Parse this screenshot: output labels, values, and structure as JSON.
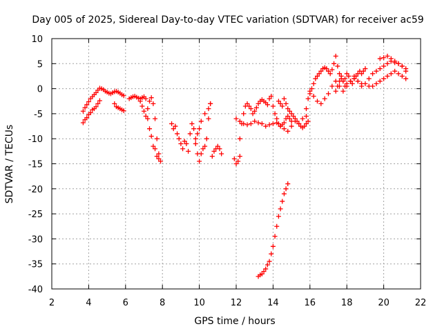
{
  "chart_data": {
    "type": "scatter",
    "title": "Day 005 of 2025, Sidereal Day-to-day VTEC variation (SDTVAR) for receiver ac59",
    "xlabel": "GPS time / hours",
    "ylabel": "SDTVAR / TECUs",
    "xlim": [
      2,
      22
    ],
    "ylim": [
      -40,
      10
    ],
    "xticks": [
      2,
      4,
      6,
      8,
      10,
      12,
      14,
      16,
      18,
      20,
      22
    ],
    "yticks": [
      -40,
      -35,
      -30,
      -25,
      -20,
      -15,
      -10,
      -5,
      0,
      5,
      10
    ],
    "grid": true,
    "marker": "+",
    "series": [
      {
        "name": "SDTVAR",
        "color": "#ff0000",
        "x": [
          3.7,
          3.8,
          3.9,
          4.0,
          4.1,
          4.2,
          4.3,
          4.4,
          4.5,
          4.6,
          4.7,
          4.8,
          4.9,
          5.0,
          5.1,
          5.2,
          5.3,
          5.4,
          5.5,
          5.6,
          5.7,
          5.8,
          5.9,
          3.7,
          3.8,
          3.9,
          4.0,
          4.1,
          4.2,
          4.3,
          4.4,
          4.5,
          4.6,
          5.4,
          5.5,
          5.6,
          5.7,
          5.8,
          5.9,
          6.2,
          6.3,
          6.4,
          6.5,
          6.6,
          6.7,
          6.8,
          6.9,
          7.0,
          7.1,
          6.8,
          6.9,
          7.0,
          7.1,
          7.2,
          7.3,
          7.4,
          7.5,
          7.6,
          7.7,
          7.8,
          7.9,
          7.2,
          7.3,
          7.4,
          7.5,
          7.6,
          7.7,
          7.8,
          8.5,
          8.6,
          8.7,
          8.8,
          8.9,
          9.0,
          9.1,
          9.2,
          9.3,
          9.4,
          9.5,
          9.6,
          9.7,
          9.8,
          9.9,
          10.0,
          10.1,
          10.2,
          10.3,
          10.4,
          10.5,
          10.6,
          10.7,
          10.8,
          10.9,
          11.0,
          11.1,
          11.2,
          9.8,
          9.9,
          10.0,
          10.1,
          10.3,
          10.5,
          10.6,
          11.9,
          12.0,
          12.1,
          12.2,
          12.0,
          12.2,
          12.4,
          12.6,
          12.8,
          13.0,
          13.2,
          13.4,
          13.6,
          13.8,
          14.0,
          14.2,
          14.4,
          14.6,
          14.8,
          15.0,
          15.2,
          15.4,
          15.6,
          15.8,
          12.2,
          12.3,
          12.4,
          12.5,
          12.6,
          12.7,
          12.8,
          12.9,
          13.0,
          13.1,
          13.2,
          13.3,
          13.4,
          13.5,
          13.6,
          13.7,
          13.8,
          13.9,
          14.0,
          14.1,
          14.2,
          14.3,
          14.4,
          14.5,
          14.6,
          14.7,
          14.8,
          14.9,
          15.0,
          14.3,
          14.4,
          14.5,
          14.6,
          14.7,
          14.8,
          14.9,
          15.0,
          15.1,
          15.2,
          15.3,
          15.4,
          15.5,
          15.6,
          15.7,
          15.8,
          15.9,
          13.2,
          13.3,
          13.4,
          13.5,
          13.6,
          13.7,
          13.8,
          13.9,
          14.0,
          14.1,
          14.2,
          14.3,
          14.4,
          14.5,
          14.6,
          14.7,
          14.8,
          15.8,
          15.9,
          16.0,
          16.1,
          16.2,
          16.3,
          16.4,
          16.5,
          16.6,
          16.7,
          16.8,
          16.9,
          17.0,
          17.1,
          17.2,
          17.3,
          17.4,
          17.5,
          17.6,
          17.7,
          17.8,
          17.9,
          18.0,
          18.1,
          18.2,
          18.3,
          18.4,
          18.5,
          18.6,
          18.7,
          18.8,
          18.9,
          19.0,
          16.0,
          16.2,
          16.4,
          16.6,
          16.8,
          17.0,
          17.2,
          17.4,
          17.6,
          17.8,
          18.0,
          18.2,
          18.4,
          18.6,
          18.8,
          19.0,
          19.2,
          19.4,
          19.6,
          19.8,
          20.0,
          20.2,
          20.4,
          20.6,
          20.8,
          21.0,
          21.2,
          19.2,
          19.4,
          19.6,
          19.8,
          20.0,
          20.2,
          20.4,
          20.6,
          20.8,
          21.0,
          21.2,
          17.4,
          17.5,
          17.6,
          17.7,
          17.8,
          17.9,
          18.0,
          18.2,
          18.4,
          18.6,
          18.8,
          19.8,
          20.0,
          20.2,
          20.4,
          20.6,
          20.8,
          21.0,
          21.2
        ],
        "y": [
          -4.5,
          -3.8,
          -3.2,
          -2.6,
          -2.0,
          -1.6,
          -1.2,
          -0.8,
          -0.3,
          0.1,
          0.0,
          -0.2,
          -0.5,
          -0.7,
          -0.9,
          -1.0,
          -0.8,
          -0.6,
          -0.5,
          -0.7,
          -0.9,
          -1.2,
          -1.4,
          -6.8,
          -6.2,
          -5.8,
          -5.2,
          -4.8,
          -4.2,
          -4.0,
          -3.6,
          -3.0,
          -2.4,
          -3.0,
          -3.6,
          -3.8,
          -4.0,
          -4.2,
          -4.4,
          -2.0,
          -1.8,
          -1.6,
          -1.5,
          -1.7,
          -1.9,
          -2.0,
          -1.8,
          -1.6,
          -2.0,
          -2.5,
          -3.5,
          -4.5,
          -5.5,
          -4.0,
          -2.5,
          -1.8,
          -3.0,
          -6.0,
          -10.0,
          -13.0,
          -14.5,
          -6.0,
          -8.0,
          -9.5,
          -11.5,
          -12.0,
          -13.5,
          -14.0,
          -7.0,
          -8.0,
          -7.5,
          -9.0,
          -10.0,
          -11.0,
          -12.0,
          -10.5,
          -11.0,
          -12.5,
          -9.0,
          -7.0,
          -8.0,
          -10.0,
          -13.0,
          -14.5,
          -13.0,
          -12.0,
          -11.5,
          -10.0,
          -6.0,
          -3.0,
          -13.5,
          -12.5,
          -12.0,
          -11.5,
          -12.0,
          -13.0,
          -11.0,
          -9.0,
          -8.0,
          -6.5,
          -5.0,
          -4.0,
          -3.0,
          -14.0,
          -15.0,
          -14.5,
          -13.5,
          -6.0,
          -6.5,
          -7.0,
          -7.2,
          -7.0,
          -6.5,
          -6.8,
          -7.0,
          -7.5,
          -7.2,
          -7.0,
          -6.8,
          -7.5,
          -8.0,
          -8.5,
          -7.5,
          -6.5,
          -7.0,
          -6.0,
          -5.5,
          -10.0,
          -7.0,
          -5.0,
          -3.5,
          -3.0,
          -3.5,
          -4.0,
          -5.0,
          -4.5,
          -3.8,
          -3.0,
          -2.5,
          -2.2,
          -2.5,
          -2.8,
          -3.2,
          -2.0,
          -1.5,
          -3.5,
          -5.0,
          -6.0,
          -7.0,
          -7.5,
          -7.2,
          -6.8,
          -6.0,
          -5.5,
          -6.0,
          -6.5,
          -2.5,
          -3.0,
          -3.5,
          -2.0,
          -3.0,
          -4.0,
          -4.5,
          -5.0,
          -5.5,
          -6.0,
          -6.5,
          -7.0,
          -7.5,
          -7.8,
          -7.5,
          -7.0,
          -6.5,
          -37.5,
          -37.2,
          -37.0,
          -36.5,
          -36.0,
          -35.2,
          -34.5,
          -33.0,
          -31.5,
          -29.5,
          -27.5,
          -25.5,
          -24.0,
          -22.5,
          -21.0,
          -20.0,
          -19.0,
          -4.0,
          -2.0,
          -1.0,
          0.0,
          1.0,
          2.0,
          2.5,
          3.0,
          3.5,
          4.0,
          4.2,
          4.0,
          3.5,
          3.0,
          3.8,
          5.0,
          6.5,
          4.5,
          3.0,
          2.0,
          1.5,
          2.0,
          3.0,
          2.5,
          1.5,
          1.0,
          2.0,
          2.5,
          3.0,
          3.5,
          3.0,
          3.5,
          4.0,
          -0.5,
          -1.5,
          -2.5,
          -3.0,
          -2.0,
          -1.0,
          0.5,
          1.5,
          0.5,
          -0.5,
          0.5,
          1.5,
          2.5,
          1.5,
          0.5,
          1.0,
          2.0,
          3.0,
          3.5,
          4.0,
          4.5,
          5.0,
          5.5,
          5.2,
          5.0,
          4.5,
          4.0,
          0.5,
          0.5,
          1.0,
          1.5,
          2.0,
          2.5,
          3.0,
          3.5,
          3.0,
          2.5,
          2.0,
          -0.5,
          0.5,
          1.5,
          2.5,
          1.5,
          0.5,
          1.0,
          1.5,
          2.0,
          1.5,
          1.0,
          6.0,
          6.2,
          6.5,
          6.0,
          5.5,
          5.0,
          4.5,
          3.5
        ]
      }
    ]
  }
}
